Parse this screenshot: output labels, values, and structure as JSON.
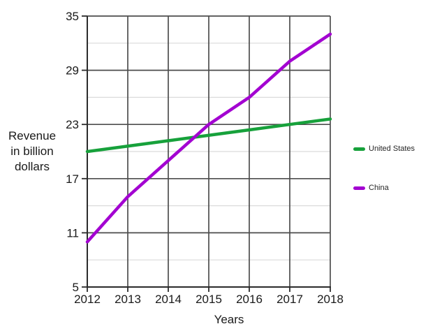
{
  "chart": {
    "y_axis_title_display": "Revenue\nin billion\ndollars",
    "x_axis_title": "Years"
  },
  "chart_data": {
    "type": "line",
    "title": "",
    "xlabel": "Years",
    "ylabel": "Revenue in billion dollars",
    "x": [
      2012,
      2013,
      2014,
      2015,
      2016,
      2017,
      2018
    ],
    "categories": [
      "2012",
      "2013",
      "2014",
      "2015",
      "2016",
      "2017",
      "2018"
    ],
    "series": [
      {
        "name": "United States",
        "color": "#17a13b",
        "values": [
          20,
          20.6,
          21.2,
          21.8,
          22.4,
          23,
          23.6
        ]
      },
      {
        "name": "China",
        "color": "#a303d1",
        "values": [
          10,
          15,
          19,
          23,
          26,
          30,
          33
        ]
      }
    ],
    "ylim": [
      5,
      35
    ],
    "yticks_major": [
      5,
      11,
      17,
      23,
      29,
      35
    ],
    "yticks_minor": [
      8,
      14,
      20,
      26,
      32
    ],
    "grid": {
      "vertical": "dark per year",
      "horizontal_major": "dark",
      "horizontal_minor": "light"
    },
    "legend_position": "right"
  }
}
